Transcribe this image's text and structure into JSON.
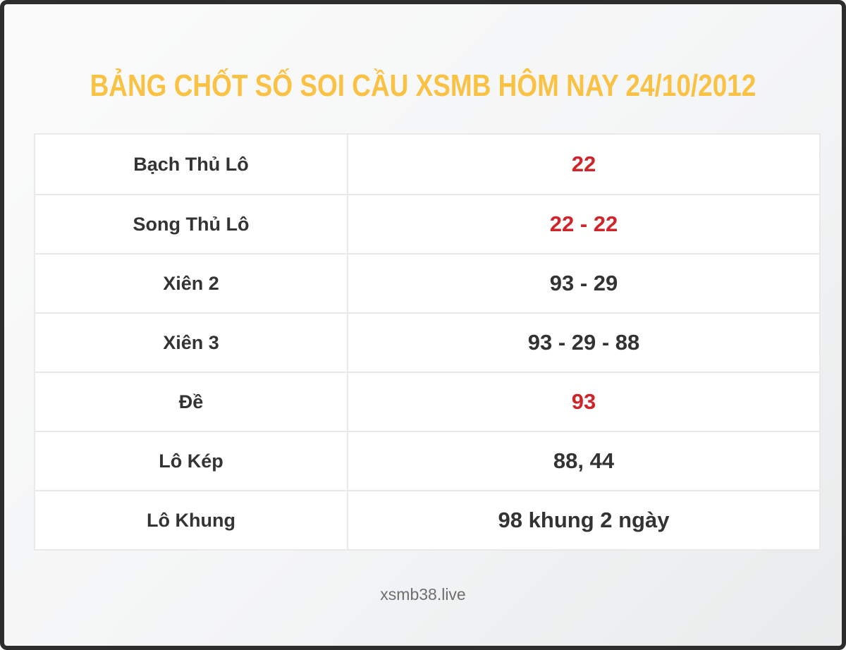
{
  "chart_data": {
    "type": "table",
    "title": "BẢNG CHỐT SỐ SOI CẦU XSMB HÔM NAY 24/10/2012",
    "rows": [
      {
        "label": "Bạch Thủ Lô",
        "value": "22",
        "red": true
      },
      {
        "label": "Song Thủ Lô",
        "value": "22 - 22",
        "red": true
      },
      {
        "label": "Xiên 2",
        "value": "93 - 29",
        "red": false
      },
      {
        "label": "Xiên 3",
        "value": "93 - 29 - 88",
        "red": false
      },
      {
        "label": "Đề",
        "value": "93",
        "red": true
      },
      {
        "label": "Lô Kép",
        "value": "88, 44",
        "red": false
      },
      {
        "label": "Lô Khung",
        "value": "98 khung 2 ngày",
        "red": false
      }
    ]
  },
  "footer": {
    "text": "xsmb38.live"
  },
  "colors": {
    "title_text": "#FAC245",
    "value_red": "#D0242B",
    "text_dark": "#333333",
    "table_border": "#E9E9E9",
    "frame_border": "#2D2D2D",
    "bg_light": "#FBFBFB",
    "bg_shade": "#E9EBEC",
    "footer_text": "#6E6E6E",
    "cell_bg": "#FFFFFF"
  }
}
